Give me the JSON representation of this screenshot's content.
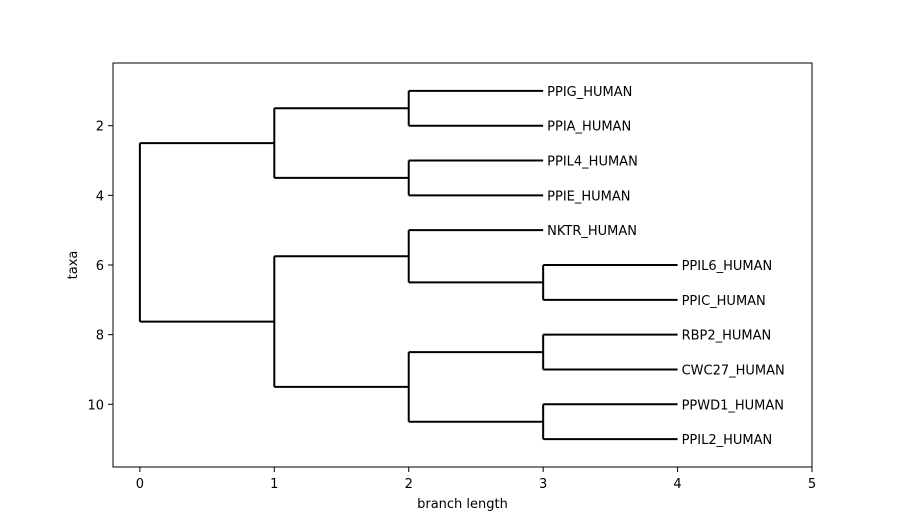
{
  "chart_data": {
    "type": "dendrogram",
    "title": "",
    "xlabel": "branch length",
    "ylabel": "taxa",
    "xlim": [
      -0.2,
      5
    ],
    "ylim": [
      11.8,
      0.2
    ],
    "xticks": [
      "0",
      "1",
      "2",
      "3",
      "4",
      "5"
    ],
    "yticks": [
      "2",
      "4",
      "6",
      "8",
      "10"
    ],
    "grid": false,
    "leaves": [
      {
        "name": "PPIG_HUMAN",
        "x": 3,
        "y": 1
      },
      {
        "name": "PPIA_HUMAN",
        "x": 3,
        "y": 2
      },
      {
        "name": "PPIL4_HUMAN",
        "x": 3,
        "y": 3
      },
      {
        "name": "PPIE_HUMAN",
        "x": 3,
        "y": 4
      },
      {
        "name": "NKTR_HUMAN",
        "x": 3,
        "y": 5
      },
      {
        "name": "PPIL6_HUMAN",
        "x": 4,
        "y": 6
      },
      {
        "name": "PPIC_HUMAN",
        "x": 4,
        "y": 7
      },
      {
        "name": "RBP2_HUMAN",
        "x": 4,
        "y": 8
      },
      {
        "name": "CWC27_HUMAN",
        "x": 4,
        "y": 9
      },
      {
        "name": "PPWD1_HUMAN",
        "x": 4,
        "y": 10
      },
      {
        "name": "PPIL2_HUMAN",
        "x": 4,
        "y": 11
      }
    ],
    "tree": {
      "x": 0,
      "children": [
        {
          "x": 1,
          "children": [
            {
              "x": 2,
              "children": [
                {
                  "leaf": 0
                },
                {
                  "leaf": 1
                }
              ]
            },
            {
              "x": 2,
              "children": [
                {
                  "leaf": 2
                },
                {
                  "leaf": 3
                }
              ]
            }
          ]
        },
        {
          "x": 1,
          "children": [
            {
              "x": 2,
              "children": [
                {
                  "leaf": 4
                },
                {
                  "x": 3,
                  "children": [
                    {
                      "leaf": 5
                    },
                    {
                      "leaf": 6
                    }
                  ]
                }
              ]
            },
            {
              "x": 2,
              "children": [
                {
                  "x": 3,
                  "children": [
                    {
                      "leaf": 7
                    },
                    {
                      "leaf": 8
                    }
                  ]
                },
                {
                  "x": 3,
                  "children": [
                    {
                      "leaf": 9
                    },
                    {
                      "leaf": 10
                    }
                  ]
                }
              ]
            }
          ]
        }
      ]
    }
  }
}
